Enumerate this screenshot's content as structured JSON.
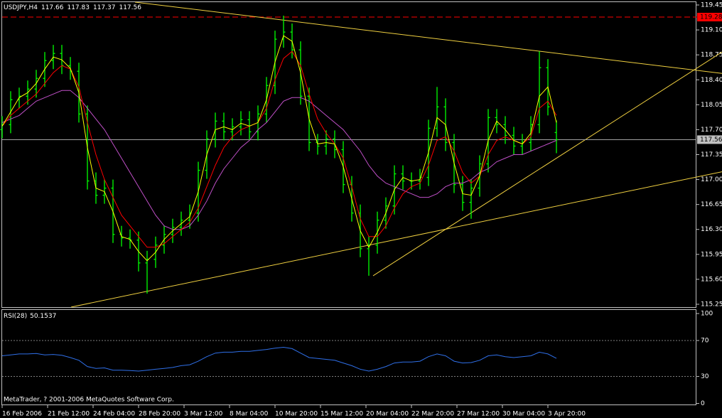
{
  "chart_data": [
    {
      "type": "ohlc",
      "symbol": "USDJPY,H4",
      "color": "#00ff00",
      "footer": "MetaTrader, ? 2001-2006 MetaQuotes Software Corp.",
      "x": [
        0,
        3,
        6,
        9,
        12,
        15,
        18,
        21,
        24,
        27,
        30,
        33,
        36,
        39,
        42,
        45,
        48,
        51,
        54,
        57,
        60,
        63,
        66,
        69,
        72,
        75,
        78,
        81,
        84,
        87,
        90,
        93,
        96,
        99,
        102,
        105,
        108,
        111,
        114,
        117,
        120,
        123,
        126,
        129,
        132,
        135,
        138,
        141,
        144,
        147,
        150,
        153,
        156,
        159,
        162,
        165,
        168,
        171,
        174,
        177,
        180,
        183,
        186,
        189,
        192,
        195
      ],
      "open": [
        117.7,
        117.77,
        118.12,
        118.17,
        118.27,
        118.42,
        118.67,
        118.77,
        118.6,
        118.52,
        117.92,
        116.98,
        116.78,
        116.88,
        116.23,
        116.18,
        116.15,
        115.83,
        115.88,
        116.08,
        116.23,
        116.33,
        116.43,
        116.53,
        117.13,
        117.57,
        117.82,
        117.67,
        117.74,
        117.84,
        117.67,
        117.92,
        118.32,
        118.97,
        119.07,
        118.82,
        118.17,
        117.52,
        117.47,
        117.57,
        117.42,
        116.93,
        116.53,
        116.03,
        116.08,
        116.43,
        116.63,
        117.08,
        116.98,
        116.98,
        117.03,
        117.72,
        118.02,
        117.52,
        116.93,
        116.68,
        116.88,
        117.22,
        117.87,
        117.77,
        117.62,
        117.47,
        117.52,
        117.77,
        118.57,
        117.66
      ],
      "high": [
        117.89,
        118.24,
        118.29,
        118.39,
        118.54,
        118.79,
        118.89,
        118.89,
        118.72,
        118.64,
        118.04,
        117.1,
        117.0,
        117.0,
        116.35,
        116.3,
        116.27,
        116.0,
        116.2,
        116.35,
        116.45,
        116.55,
        116.65,
        117.25,
        117.69,
        117.94,
        117.94,
        117.86,
        117.96,
        117.96,
        118.04,
        118.44,
        119.09,
        119.3,
        119.19,
        118.94,
        118.29,
        117.64,
        117.69,
        117.69,
        117.54,
        117.05,
        116.65,
        116.2,
        116.55,
        116.75,
        117.2,
        117.2,
        117.1,
        117.15,
        117.84,
        118.3,
        118.14,
        117.64,
        117.05,
        117.0,
        117.34,
        117.99,
        117.99,
        117.89,
        117.74,
        117.64,
        117.89,
        118.8,
        118.69,
        117.83
      ],
      "low": [
        117.58,
        117.65,
        118.0,
        118.05,
        118.15,
        118.3,
        118.55,
        118.48,
        118.4,
        117.8,
        116.86,
        116.66,
        116.66,
        116.11,
        116.06,
        116.03,
        115.71,
        115.4,
        115.76,
        115.96,
        116.11,
        116.21,
        116.31,
        116.41,
        117.01,
        117.45,
        117.55,
        117.55,
        117.62,
        117.55,
        117.55,
        117.8,
        118.2,
        118.85,
        118.7,
        118.05,
        117.4,
        117.35,
        117.35,
        117.3,
        116.81,
        116.41,
        115.91,
        115.65,
        115.96,
        116.31,
        116.51,
        116.86,
        116.86,
        116.86,
        116.91,
        117.6,
        117.4,
        116.81,
        116.56,
        116.45,
        116.76,
        117.1,
        117.65,
        117.5,
        117.35,
        117.35,
        117.4,
        117.65,
        117.9,
        117.37
      ],
      "close": [
        117.77,
        118.12,
        118.17,
        118.27,
        118.42,
        118.67,
        118.77,
        118.6,
        118.52,
        117.92,
        116.98,
        116.78,
        116.88,
        116.23,
        116.18,
        116.15,
        115.83,
        115.88,
        116.08,
        116.23,
        116.33,
        116.43,
        116.53,
        117.13,
        117.57,
        117.82,
        117.67,
        117.74,
        117.84,
        117.67,
        117.92,
        118.32,
        118.97,
        119.07,
        118.82,
        118.17,
        117.52,
        117.47,
        117.57,
        117.42,
        116.93,
        116.53,
        116.03,
        116.08,
        116.43,
        116.63,
        117.08,
        116.98,
        116.98,
        117.03,
        117.72,
        118.02,
        117.52,
        116.93,
        116.68,
        116.88,
        117.22,
        117.87,
        117.77,
        117.62,
        117.47,
        117.52,
        117.77,
        118.57,
        118.02,
        117.56
      ],
      "series": [
        {
          "color": "#c050c8",
          "values": [
            117.8,
            117.85,
            117.9,
            118.0,
            118.1,
            118.15,
            118.2,
            118.25,
            118.25,
            118.15,
            118.0,
            117.85,
            117.7,
            117.5,
            117.3,
            117.1,
            116.9,
            116.7,
            116.5,
            116.35,
            116.3,
            116.3,
            116.35,
            116.5,
            116.7,
            116.95,
            117.15,
            117.3,
            117.45,
            117.55,
            117.7,
            117.8,
            117.95,
            118.1,
            118.15,
            118.15,
            118.1,
            118.0,
            117.9,
            117.8,
            117.7,
            117.55,
            117.4,
            117.2,
            117.05,
            116.95,
            116.9,
            116.85,
            116.8,
            116.75,
            116.75,
            116.8,
            116.9,
            116.95,
            116.95,
            117.0,
            117.1,
            117.15,
            117.25,
            117.3,
            117.35,
            117.35,
            117.4,
            117.45,
            117.5,
            117.55
          ]
        },
        {
          "color": "#ff0000",
          "values": [
            117.75,
            117.9,
            118.0,
            118.1,
            118.2,
            118.35,
            118.5,
            118.6,
            118.55,
            118.3,
            117.8,
            117.35,
            117.0,
            116.75,
            116.5,
            116.35,
            116.2,
            116.05,
            116.05,
            116.1,
            116.2,
            116.3,
            116.4,
            116.6,
            116.9,
            117.2,
            117.45,
            117.6,
            117.7,
            117.75,
            117.8,
            118.0,
            118.4,
            118.7,
            118.8,
            118.6,
            118.2,
            117.85,
            117.65,
            117.5,
            117.3,
            116.9,
            116.45,
            116.2,
            116.2,
            116.35,
            116.6,
            116.8,
            116.9,
            116.95,
            117.2,
            117.55,
            117.6,
            117.4,
            117.1,
            116.95,
            117.05,
            117.35,
            117.55,
            117.6,
            117.55,
            117.5,
            117.6,
            118.0,
            118.1,
            117.9
          ]
        },
        {
          "color": "#ffff00",
          "values": [
            117.75,
            117.95,
            118.15,
            118.22,
            118.35,
            118.55,
            118.72,
            118.68,
            118.56,
            118.22,
            117.45,
            116.88,
            116.83,
            116.55,
            116.2,
            116.16,
            115.99,
            115.86,
            115.98,
            116.16,
            116.28,
            116.38,
            116.48,
            116.83,
            117.35,
            117.7,
            117.74,
            117.7,
            117.79,
            117.75,
            117.8,
            118.12,
            118.65,
            119.02,
            118.94,
            118.5,
            117.85,
            117.5,
            117.52,
            117.5,
            117.18,
            116.73,
            116.28,
            116.05,
            116.26,
            116.53,
            116.86,
            117.03,
            116.98,
            117.0,
            117.38,
            117.87,
            117.77,
            117.23,
            116.8,
            116.78,
            117.05,
            117.55,
            117.82,
            117.7,
            117.55,
            117.5,
            117.65,
            118.17,
            118.3,
            117.8
          ]
        }
      ],
      "trendline_color": "#f0d040",
      "trendlines": [
        {
          "x": [
            46.75,
            253.25
          ],
          "y": [
            119.49,
            118.49
          ]
        },
        {
          "x": [
            24.25,
            253.25
          ],
          "y": [
            115.21,
            117.11
          ]
        },
        {
          "x": [
            130.5,
            253.25
          ],
          "y": [
            115.65,
            118.79
          ]
        }
      ],
      "level": {
        "value": 119.28,
        "color": "#ff0000"
      },
      "xlim": [
        -0.75,
        244.25
      ],
      "xticks": [
        {
          "value": 0,
          "label": "16 Feb 2006"
        },
        {
          "value": 16,
          "label": "21 Feb 12:00"
        },
        {
          "value": 32,
          "label": "24 Feb 04:00"
        },
        {
          "value": 48,
          "label": "28 Feb 20:00"
        },
        {
          "value": 64,
          "label": "3 Mar 12:00"
        },
        {
          "value": 80,
          "label": "8 Mar 04:00"
        },
        {
          "value": 96,
          "label": "10 Mar 20:00"
        },
        {
          "value": 112,
          "label": "15 Mar 12:00"
        },
        {
          "value": 128,
          "label": "20 Mar 04:00"
        },
        {
          "value": 144,
          "label": "22 Mar 20:00"
        },
        {
          "value": 160,
          "label": "27 Mar 12:00"
        },
        {
          "value": 176,
          "label": "30 Mar 04:00"
        },
        {
          "value": 192,
          "label": "3 Apr 20:00"
        }
      ],
      "ylim": [
        115.21,
        119.49
      ],
      "yticks": [
        119.45,
        {
          "value": 119.1,
          "label": "119.10"
        },
        118.75,
        {
          "value": 118.4,
          "label": "118.40"
        },
        118.05,
        {
          "value": 117.7,
          "label": "117.70"
        },
        117.35,
        {
          "value": 117.0,
          "label": "117.00"
        },
        116.65,
        {
          "value": 116.3,
          "label": "116.30"
        },
        115.95,
        {
          "value": 115.6,
          "label": "115.60"
        },
        115.25
      ]
    },
    {
      "type": "line",
      "title": "RSI(28)",
      "x": [
        0,
        3,
        6,
        9,
        12,
        15,
        18,
        21,
        24,
        27,
        30,
        33,
        36,
        39,
        42,
        45,
        48,
        51,
        54,
        57,
        60,
        63,
        66,
        69,
        72,
        75,
        78,
        81,
        84,
        87,
        90,
        93,
        96,
        99,
        102,
        105,
        108,
        111,
        114,
        117,
        120,
        123,
        126,
        129,
        132,
        135,
        138,
        141,
        144,
        147,
        150,
        153,
        156,
        159,
        162,
        165,
        168,
        171,
        174,
        177,
        180,
        183,
        186,
        189,
        192,
        195
      ],
      "series": [
        {
          "color": "#2f6fe8",
          "values": [
            53,
            54,
            55,
            55,
            55.5,
            54,
            54.5,
            53.5,
            51,
            48,
            41,
            39,
            39.5,
            37,
            37,
            36.5,
            36,
            37,
            38,
            39,
            40,
            42,
            43,
            47,
            52,
            56,
            57,
            57,
            58,
            58,
            59,
            60,
            61.5,
            62.5,
            61,
            56,
            51,
            50,
            49,
            48,
            45,
            42,
            38,
            36,
            38,
            41,
            45,
            46,
            46,
            47,
            52,
            55,
            53,
            47,
            45,
            45.5,
            48,
            53,
            54,
            52,
            51,
            52,
            53,
            57,
            55,
            50.1537
          ]
        }
      ],
      "ylim": [
        -2,
        104
      ],
      "yticks": [
        100,
        70,
        30,
        0
      ]
    }
  ]
}
